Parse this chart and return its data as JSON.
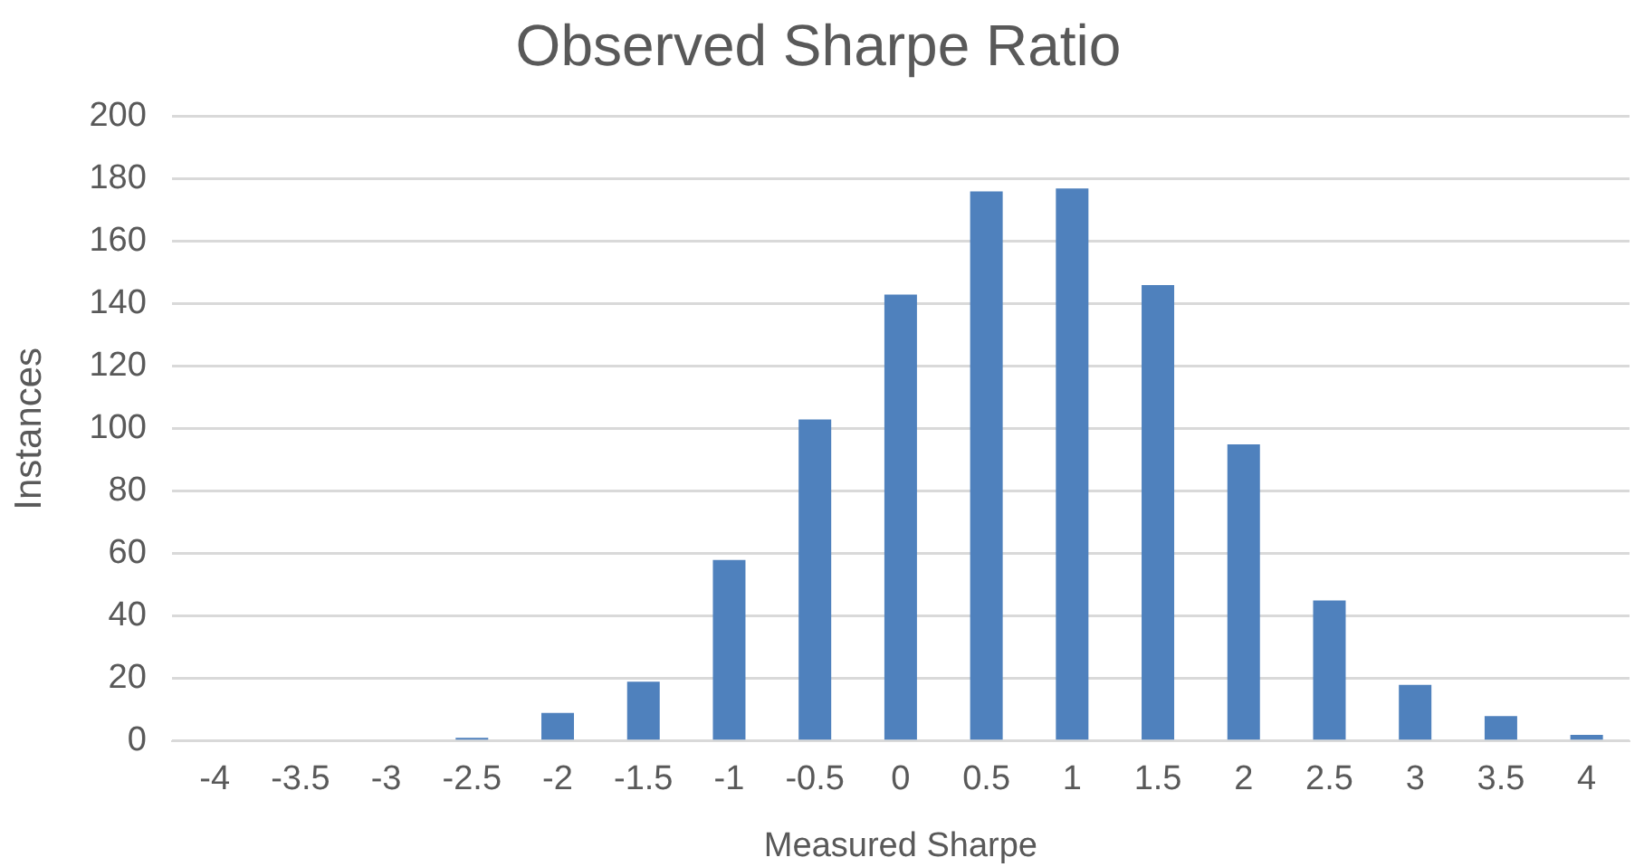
{
  "chart_data": {
    "type": "bar",
    "title": "Observed Sharpe Ratio",
    "xlabel": "Measured Sharpe",
    "ylabel": "Instances",
    "categories": [
      "-4",
      "-3.5",
      "-3",
      "-2.5",
      "-2",
      "-1.5",
      "-1",
      "-0.5",
      "0",
      "0.5",
      "1",
      "1.5",
      "2",
      "2.5",
      "3",
      "3.5",
      "4"
    ],
    "values": [
      0,
      0,
      0,
      1,
      9,
      19,
      58,
      103,
      143,
      176,
      177,
      146,
      95,
      45,
      18,
      8,
      2
    ],
    "color": "#4f81bd",
    "ylim": [
      0,
      200
    ],
    "yticks": [
      0,
      20,
      40,
      60,
      80,
      100,
      120,
      140,
      160,
      180,
      200
    ],
    "grid": "y",
    "legend": false
  }
}
